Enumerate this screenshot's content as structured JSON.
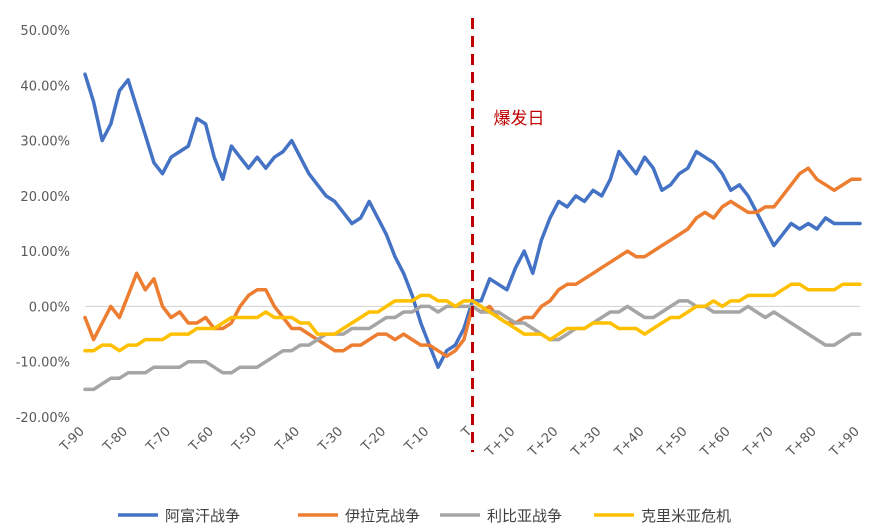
{
  "chart_data": {
    "type": "line",
    "annotation": "爆发日",
    "annotation_color": "#c00000",
    "annotation_x": 0,
    "ylim": [
      -0.2,
      0.5
    ],
    "yticks": [
      -0.2,
      -0.1,
      0.0,
      0.1,
      0.2,
      0.3,
      0.4,
      0.5
    ],
    "ytick_labels": [
      "-20.00%",
      "-10.00%",
      "0.00%",
      "10.00%",
      "20.00%",
      "30.00%",
      "40.00%",
      "50.00%"
    ],
    "xlim": [
      -90,
      90
    ],
    "xticks": [
      -90,
      -80,
      -70,
      -60,
      -50,
      -40,
      -30,
      -20,
      -10,
      0,
      10,
      20,
      30,
      40,
      50,
      60,
      70,
      80,
      90
    ],
    "xtick_labels": [
      "T-90",
      "T-80",
      "T-70",
      "T-60",
      "T-50",
      "T-40",
      "T-30",
      "T-20",
      "T-10",
      "T",
      "T+10",
      "T+20",
      "T+30",
      "T+40",
      "T+50",
      "T+60",
      "T+70",
      "T+80",
      "T+90"
    ],
    "grid": false,
    "legend": "bottom",
    "series": [
      {
        "name": "阿富汗战争",
        "color": "#4472c4",
        "x": [
          -90,
          -88,
          -86,
          -84,
          -82,
          -80,
          -78,
          -76,
          -74,
          -72,
          -70,
          -68,
          -66,
          -64,
          -62,
          -60,
          -58,
          -56,
          -54,
          -52,
          -50,
          -48,
          -46,
          -44,
          -42,
          -40,
          -38,
          -36,
          -34,
          -32,
          -30,
          -28,
          -26,
          -24,
          -22,
          -20,
          -18,
          -16,
          -14,
          -12,
          -10,
          -8,
          -6,
          -4,
          -2,
          0,
          2,
          4,
          6,
          8,
          10,
          12,
          14,
          16,
          18,
          20,
          22,
          24,
          26,
          28,
          30,
          32,
          34,
          36,
          38,
          40,
          42,
          44,
          46,
          48,
          50,
          52,
          54,
          56,
          58,
          60,
          62,
          64,
          66,
          68,
          70,
          72,
          74,
          76,
          78,
          80,
          82,
          84,
          86,
          88,
          90
        ],
        "y": [
          0.42,
          0.37,
          0.3,
          0.33,
          0.39,
          0.41,
          0.36,
          0.31,
          0.26,
          0.24,
          0.27,
          0.28,
          0.29,
          0.34,
          0.33,
          0.27,
          0.23,
          0.29,
          0.27,
          0.25,
          0.27,
          0.25,
          0.27,
          0.28,
          0.3,
          0.27,
          0.24,
          0.22,
          0.2,
          0.19,
          0.17,
          0.15,
          0.16,
          0.19,
          0.16,
          0.13,
          0.09,
          0.06,
          0.02,
          -0.03,
          -0.07,
          -0.11,
          -0.08,
          -0.07,
          -0.04,
          0.01,
          0.01,
          0.05,
          0.04,
          0.03,
          0.07,
          0.1,
          0.06,
          0.12,
          0.16,
          0.19,
          0.18,
          0.2,
          0.19,
          0.21,
          0.2,
          0.23,
          0.28,
          0.26,
          0.24,
          0.27,
          0.25,
          0.21,
          0.22,
          0.24,
          0.25,
          0.28,
          0.27,
          0.26,
          0.24,
          0.21,
          0.22,
          0.2,
          0.17,
          0.14,
          0.11,
          0.13,
          0.15,
          0.14,
          0.15,
          0.14,
          0.16,
          0.15,
          0.15,
          0.15,
          0.15
        ]
      },
      {
        "name": "伊拉克战争",
        "color": "#ed7d31",
        "x": [
          -90,
          -88,
          -86,
          -84,
          -82,
          -80,
          -78,
          -76,
          -74,
          -72,
          -70,
          -68,
          -66,
          -64,
          -62,
          -60,
          -58,
          -56,
          -54,
          -52,
          -50,
          -48,
          -46,
          -44,
          -42,
          -40,
          -38,
          -36,
          -34,
          -32,
          -30,
          -28,
          -26,
          -24,
          -22,
          -20,
          -18,
          -16,
          -14,
          -12,
          -10,
          -8,
          -6,
          -4,
          -2,
          0,
          2,
          4,
          6,
          8,
          10,
          12,
          14,
          16,
          18,
          20,
          22,
          24,
          26,
          28,
          30,
          32,
          34,
          36,
          38,
          40,
          42,
          44,
          46,
          48,
          50,
          52,
          54,
          56,
          58,
          60,
          62,
          64,
          66,
          68,
          70,
          72,
          74,
          76,
          78,
          80,
          82,
          84,
          86,
          88,
          90
        ],
        "y": [
          -0.02,
          -0.06,
          -0.03,
          0.0,
          -0.02,
          0.02,
          0.06,
          0.03,
          0.05,
          0.0,
          -0.02,
          -0.01,
          -0.03,
          -0.03,
          -0.02,
          -0.04,
          -0.04,
          -0.03,
          0.0,
          0.02,
          0.03,
          0.03,
          0.0,
          -0.02,
          -0.04,
          -0.04,
          -0.05,
          -0.06,
          -0.07,
          -0.08,
          -0.08,
          -0.07,
          -0.07,
          -0.06,
          -0.05,
          -0.05,
          -0.06,
          -0.05,
          -0.06,
          -0.07,
          -0.07,
          -0.08,
          -0.09,
          -0.08,
          -0.06,
          0.0,
          -0.01,
          0.0,
          -0.02,
          -0.03,
          -0.03,
          -0.02,
          -0.02,
          0.0,
          0.01,
          0.03,
          0.04,
          0.04,
          0.05,
          0.06,
          0.07,
          0.08,
          0.09,
          0.1,
          0.09,
          0.09,
          0.1,
          0.11,
          0.12,
          0.13,
          0.14,
          0.16,
          0.17,
          0.16,
          0.18,
          0.19,
          0.18,
          0.17,
          0.17,
          0.18,
          0.18,
          0.2,
          0.22,
          0.24,
          0.25,
          0.23,
          0.22,
          0.21,
          0.22,
          0.23,
          0.23
        ]
      },
      {
        "name": "利比亚战争",
        "color": "#a5a5a5",
        "x": [
          -90,
          -88,
          -86,
          -84,
          -82,
          -80,
          -78,
          -76,
          -74,
          -72,
          -70,
          -68,
          -66,
          -64,
          -62,
          -60,
          -58,
          -56,
          -54,
          -52,
          -50,
          -48,
          -46,
          -44,
          -42,
          -40,
          -38,
          -36,
          -34,
          -32,
          -30,
          -28,
          -26,
          -24,
          -22,
          -20,
          -18,
          -16,
          -14,
          -12,
          -10,
          -8,
          -6,
          -4,
          -2,
          0,
          2,
          4,
          6,
          8,
          10,
          12,
          14,
          16,
          18,
          20,
          22,
          24,
          26,
          28,
          30,
          32,
          34,
          36,
          38,
          40,
          42,
          44,
          46,
          48,
          50,
          52,
          54,
          56,
          58,
          60,
          62,
          64,
          66,
          68,
          70,
          72,
          74,
          76,
          78,
          80,
          82,
          84,
          86,
          88,
          90
        ],
        "y": [
          -0.15,
          -0.15,
          -0.14,
          -0.13,
          -0.13,
          -0.12,
          -0.12,
          -0.12,
          -0.11,
          -0.11,
          -0.11,
          -0.11,
          -0.1,
          -0.1,
          -0.1,
          -0.11,
          -0.12,
          -0.12,
          -0.11,
          -0.11,
          -0.11,
          -0.1,
          -0.09,
          -0.08,
          -0.08,
          -0.07,
          -0.07,
          -0.06,
          -0.05,
          -0.05,
          -0.05,
          -0.04,
          -0.04,
          -0.04,
          -0.03,
          -0.02,
          -0.02,
          -0.01,
          -0.01,
          0.0,
          0.0,
          -0.01,
          0.0,
          0.0,
          0.0,
          0.0,
          -0.01,
          -0.01,
          -0.01,
          -0.02,
          -0.03,
          -0.03,
          -0.04,
          -0.05,
          -0.06,
          -0.06,
          -0.05,
          -0.04,
          -0.04,
          -0.03,
          -0.02,
          -0.01,
          -0.01,
          0.0,
          -0.01,
          -0.02,
          -0.02,
          -0.01,
          0.0,
          0.01,
          0.01,
          0.0,
          0.0,
          -0.01,
          -0.01,
          -0.01,
          -0.01,
          0.0,
          -0.01,
          -0.02,
          -0.01,
          -0.02,
          -0.03,
          -0.04,
          -0.05,
          -0.06,
          -0.07,
          -0.07,
          -0.06,
          -0.05,
          -0.05
        ]
      },
      {
        "name": "克里米亚危机",
        "color": "#ffc000",
        "x": [
          -90,
          -88,
          -86,
          -84,
          -82,
          -80,
          -78,
          -76,
          -74,
          -72,
          -70,
          -68,
          -66,
          -64,
          -62,
          -60,
          -58,
          -56,
          -54,
          -52,
          -50,
          -48,
          -46,
          -44,
          -42,
          -40,
          -38,
          -36,
          -34,
          -32,
          -30,
          -28,
          -26,
          -24,
          -22,
          -20,
          -18,
          -16,
          -14,
          -12,
          -10,
          -8,
          -6,
          -4,
          -2,
          0,
          2,
          4,
          6,
          8,
          10,
          12,
          14,
          16,
          18,
          20,
          22,
          24,
          26,
          28,
          30,
          32,
          34,
          36,
          38,
          40,
          42,
          44,
          46,
          48,
          50,
          52,
          54,
          56,
          58,
          60,
          62,
          64,
          66,
          68,
          70,
          72,
          74,
          76,
          78,
          80,
          82,
          84,
          86,
          88,
          90
        ],
        "y": [
          -0.08,
          -0.08,
          -0.07,
          -0.07,
          -0.08,
          -0.07,
          -0.07,
          -0.06,
          -0.06,
          -0.06,
          -0.05,
          -0.05,
          -0.05,
          -0.04,
          -0.04,
          -0.04,
          -0.03,
          -0.02,
          -0.02,
          -0.02,
          -0.02,
          -0.01,
          -0.02,
          -0.02,
          -0.02,
          -0.03,
          -0.03,
          -0.05,
          -0.05,
          -0.05,
          -0.04,
          -0.03,
          -0.02,
          -0.01,
          -0.01,
          0.0,
          0.01,
          0.01,
          0.01,
          0.02,
          0.02,
          0.01,
          0.01,
          0.0,
          0.01,
          0.01,
          0.0,
          -0.01,
          -0.02,
          -0.03,
          -0.04,
          -0.05,
          -0.05,
          -0.05,
          -0.06,
          -0.05,
          -0.04,
          -0.04,
          -0.04,
          -0.03,
          -0.03,
          -0.03,
          -0.04,
          -0.04,
          -0.04,
          -0.05,
          -0.04,
          -0.03,
          -0.02,
          -0.02,
          -0.01,
          0.0,
          0.0,
          0.01,
          0.0,
          0.01,
          0.01,
          0.02,
          0.02,
          0.02,
          0.02,
          0.03,
          0.04,
          0.04,
          0.03,
          0.03,
          0.03,
          0.03,
          0.04,
          0.04,
          0.04
        ]
      }
    ]
  }
}
